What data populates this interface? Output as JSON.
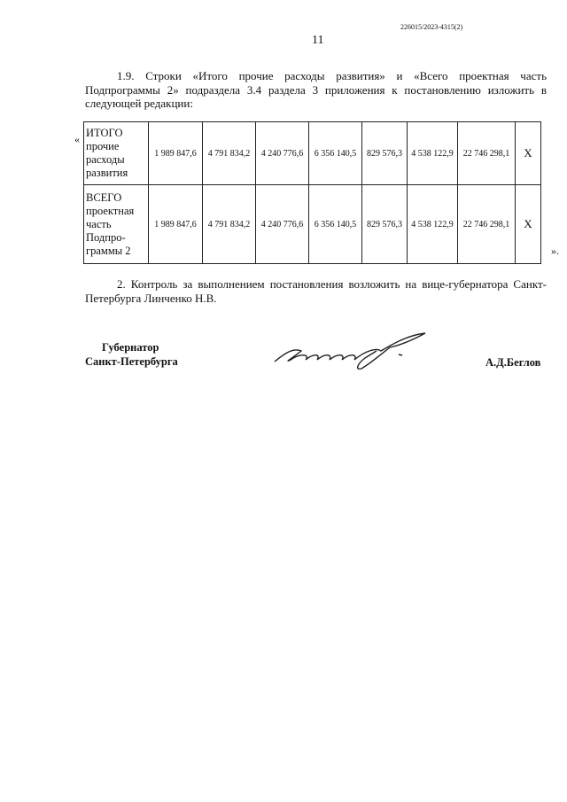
{
  "header": {
    "doc_number": "226015/2023-4315(2)",
    "page_number": "11"
  },
  "paragraph_1": "1.9. Строки «Итого прочие расходы развития» и «Всего проектная часть Подпрограммы 2» подраздела 3.4 раздела 3 приложения к постановлению изложить в следующей редакции:",
  "quote_open": "«",
  "quote_close": "».",
  "table": {
    "rows": [
      {
        "label": "ИТОГО прочие расходы развития",
        "values": [
          "1 989 847,6",
          "4 791 834,2",
          "4 240 776,6",
          "6 356 140,5",
          "829 576,3",
          "4 538 122,9",
          "22 746 298,1",
          "X"
        ]
      },
      {
        "label": "ВСЕГО проектная часть Подпро-граммы 2",
        "values": [
          "1 989 847,6",
          "4 791 834,2",
          "4 240 776,6",
          "6 356 140,5",
          "829 576,3",
          "4 538 122,9",
          "22 746 298,1",
          "X"
        ]
      }
    ]
  },
  "paragraph_2": "2. Контроль за выполнением постановления возложить на вице-губернатора Санкт-Петербурга Линченко Н.В.",
  "signature_block": {
    "title_line1": "Губернатор",
    "title_line2": "Санкт-Петербурга",
    "name": "А.Д.Беглов"
  }
}
